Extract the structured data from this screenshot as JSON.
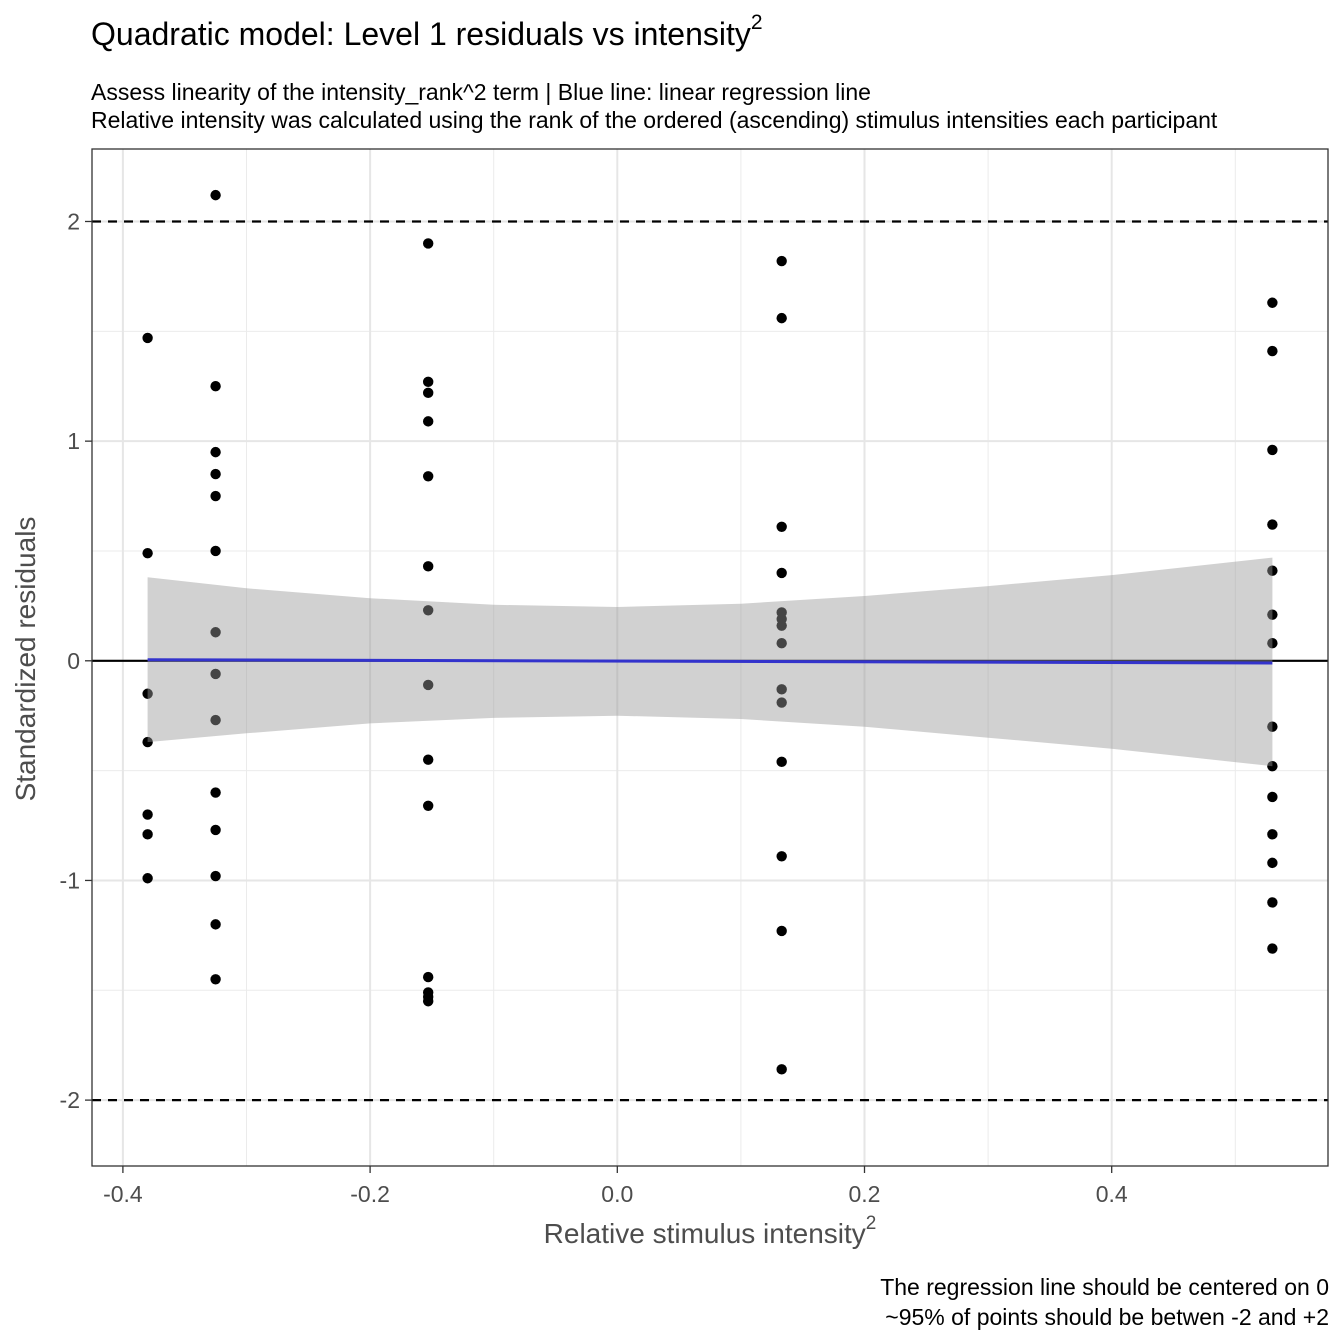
{
  "title_main": "Quadratic model: Level 1 residuals vs intensity",
  "title_sup": "2",
  "subtitle_line1": "Assess linearity of the intensity_rank^2 term | Blue line: linear regression line",
  "subtitle_line2": "Relative intensity was calculated using the rank of the ordered (ascending) stimulus intensities each participant",
  "caption_line1": "The regression line should be centered on 0",
  "caption_line2": "~95% of points should be betwen -2 and +2",
  "xlabel_main": "Relative stimulus intensity",
  "xlabel_sup": "2",
  "ylabel": "Standardized residuals",
  "chart_data": {
    "type": "scatter",
    "xlim": [
      -0.425,
      0.575
    ],
    "ylim": [
      -2.3,
      2.33
    ],
    "x_ticks": [
      -0.4,
      -0.2,
      0.0,
      0.2,
      0.4
    ],
    "x_tick_labels": [
      "-0.4",
      "-0.2",
      "0.0",
      "0.2",
      "0.4"
    ],
    "y_ticks": [
      -2,
      -1,
      0,
      1,
      2
    ],
    "y_tick_labels": [
      "-2",
      "-1",
      "0",
      "1",
      "2"
    ],
    "grid": true,
    "reference_lines": [
      {
        "y": 2,
        "style": "dashed"
      },
      {
        "y": -2,
        "style": "dashed"
      },
      {
        "y": 0,
        "style": "solid"
      }
    ],
    "regression_line": {
      "x": [
        -0.38,
        0.53
      ],
      "y": [
        0.005,
        -0.01
      ],
      "color": "#3333cc"
    },
    "confidence_band": {
      "x": [
        -0.38,
        -0.3,
        -0.2,
        -0.1,
        0.0,
        0.1,
        0.2,
        0.3,
        0.4,
        0.53
      ],
      "upper": [
        0.38,
        0.33,
        0.285,
        0.255,
        0.245,
        0.26,
        0.295,
        0.34,
        0.39,
        0.47
      ],
      "lower": [
        -0.37,
        -0.33,
        -0.285,
        -0.26,
        -0.25,
        -0.265,
        -0.3,
        -0.35,
        -0.4,
        -0.48
      ]
    },
    "points": [
      {
        "x": -0.38,
        "y": [
          1.47,
          0.49,
          -0.15,
          -0.37,
          -0.7,
          -0.79,
          -0.99
        ]
      },
      {
        "x": -0.325,
        "y": [
          2.12,
          1.25,
          0.95,
          0.85,
          0.75,
          0.5,
          0.13,
          -0.06,
          -0.27,
          -0.6,
          -0.77,
          -0.98,
          -1.2,
          -1.45
        ]
      },
      {
        "x": -0.153,
        "y": [
          1.9,
          1.27,
          1.22,
          1.09,
          0.84,
          0.43,
          0.23,
          -0.11,
          -0.45,
          -0.66,
          -1.44,
          -1.51,
          -1.53,
          -1.55
        ]
      },
      {
        "x": 0.133,
        "y": [
          1.82,
          1.56,
          0.61,
          0.4,
          0.22,
          0.19,
          0.16,
          0.08,
          -0.13,
          -0.19,
          -0.46,
          -0.89,
          -1.23,
          -1.86
        ]
      },
      {
        "x": 0.53,
        "y": [
          1.63,
          1.41,
          0.96,
          0.62,
          0.41,
          0.21,
          0.08,
          -0.3,
          -0.48,
          -0.62,
          -0.79,
          -0.92,
          -1.1,
          -1.31
        ]
      }
    ]
  }
}
